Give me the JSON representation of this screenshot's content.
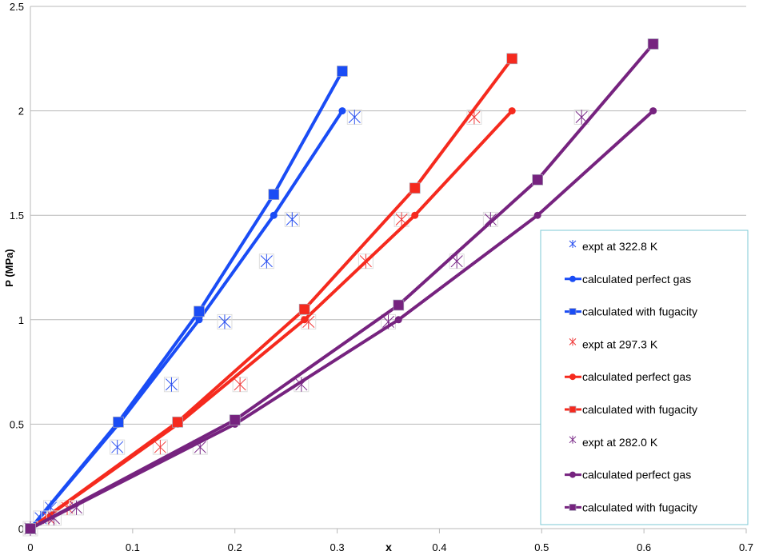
{
  "chart_data": {
    "type": "line",
    "xlabel": "x",
    "ylabel": "P (MPa)",
    "xlim": [
      0,
      0.7
    ],
    "ylim": [
      0,
      2.5
    ],
    "xticks": [
      "0",
      "0.1",
      "0.2",
      "0.3",
      "0.4",
      "0.5",
      "0.6",
      "0.7"
    ],
    "yticks": [
      "0",
      "0.5",
      "1",
      "1.5",
      "2",
      "2.5"
    ],
    "grid": "horizontal",
    "legend_placement": "right",
    "series": [
      {
        "name": "expt at 322.8 K",
        "color": "#2a50f0",
        "marker": "x",
        "line": false,
        "x": [
          0,
          0.01,
          0.02,
          0.085,
          0.138,
          0.19,
          0.231,
          0.256,
          0.317
        ],
        "y": [
          0,
          0.05,
          0.1,
          0.39,
          0.69,
          0.99,
          1.28,
          1.48,
          1.97
        ]
      },
      {
        "name": "calculated perfect gas",
        "color": "#1a4cf5",
        "marker": "circle",
        "line": true,
        "x": [
          0,
          0.086,
          0.165,
          0.238,
          0.305
        ],
        "y": [
          0,
          0.5,
          1.0,
          1.5,
          2.0
        ]
      },
      {
        "name": "calculated with fugacity",
        "color": "#1a4cf5",
        "marker": "square",
        "line": true,
        "x": [
          0,
          0.086,
          0.165,
          0.238,
          0.305
        ],
        "y": [
          0,
          0.51,
          1.04,
          1.6,
          2.19
        ]
      },
      {
        "name": "expt at 297.3 K",
        "color": "#f03a3a",
        "marker": "x",
        "line": false,
        "x": [
          0,
          0.018,
          0.036,
          0.127,
          0.205,
          0.272,
          0.328,
          0.363,
          0.434
        ],
        "y": [
          0,
          0.05,
          0.1,
          0.39,
          0.69,
          0.99,
          1.28,
          1.48,
          1.97
        ]
      },
      {
        "name": "calculated perfect gas",
        "color": "#f52a1e",
        "marker": "circle",
        "line": true,
        "x": [
          0,
          0.144,
          0.268,
          0.376,
          0.471
        ],
        "y": [
          0,
          0.5,
          1.0,
          1.5,
          2.0
        ]
      },
      {
        "name": "calculated with fugacity",
        "color": "#f52a1e",
        "marker": "square",
        "line": true,
        "x": [
          0,
          0.144,
          0.268,
          0.376,
          0.471
        ],
        "y": [
          0,
          0.51,
          1.05,
          1.63,
          2.25
        ]
      },
      {
        "name": "expt at 282.0 K",
        "color": "#7a2a88",
        "marker": "x",
        "line": false,
        "x": [
          0,
          0.023,
          0.045,
          0.166,
          0.265,
          0.35,
          0.417,
          0.45,
          0.539
        ],
        "y": [
          0,
          0.05,
          0.1,
          0.39,
          0.69,
          0.99,
          1.28,
          1.48,
          1.97
        ]
      },
      {
        "name": "calculated perfect gas",
        "color": "#76237f",
        "marker": "circle",
        "line": true,
        "x": [
          0,
          0.2,
          0.36,
          0.496,
          0.609
        ],
        "y": [
          0,
          0.5,
          1.0,
          1.5,
          2.0
        ]
      },
      {
        "name": "calculated with fugacity",
        "color": "#76237f",
        "marker": "square",
        "line": true,
        "x": [
          0,
          0.2,
          0.36,
          0.496,
          0.609
        ],
        "y": [
          0,
          0.52,
          1.07,
          1.67,
          2.32
        ]
      }
    ]
  }
}
